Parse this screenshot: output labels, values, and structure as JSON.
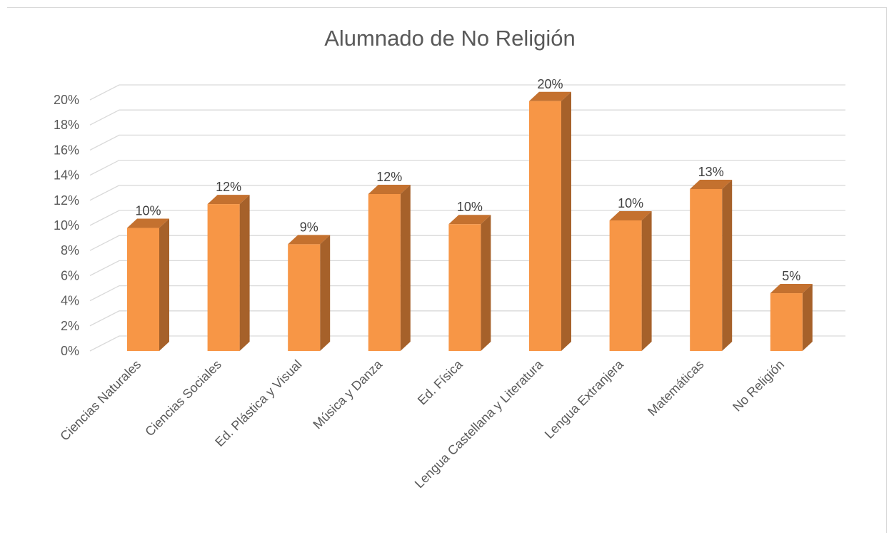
{
  "chart_data": {
    "type": "bar",
    "title": "Alumnado de No Religión",
    "xlabel": "",
    "ylabel": "",
    "ylim": [
      0,
      0.2
    ],
    "y_ticks": [
      0,
      0.02,
      0.04,
      0.06,
      0.08,
      0.1,
      0.12,
      0.14,
      0.16,
      0.18,
      0.2
    ],
    "y_tick_labels": [
      "0%",
      "2%",
      "4%",
      "6%",
      "8%",
      "10%",
      "12%",
      "14%",
      "16%",
      "18%",
      "20%"
    ],
    "categories": [
      "Ciencias Naturales",
      "Ciencias Sociales",
      "Ed. Plástica y Visual",
      "Música y Danza",
      "Ed. Física",
      "Lengua Castellana y Literatura",
      "Lengua Extranjera",
      "Matemáticas",
      "No Religión"
    ],
    "values": [
      0.098,
      0.117,
      0.085,
      0.125,
      0.101,
      0.199,
      0.104,
      0.129,
      0.046
    ],
    "data_labels": [
      "10%",
      "12%",
      "9%",
      "12%",
      "10%",
      "20%",
      "10%",
      "13%",
      "5%"
    ],
    "style": "3d-column",
    "grid": true,
    "legend": "none",
    "colors": {
      "front": "#f79646",
      "side": "#a6612a",
      "top": "#c4712f",
      "grid": "#d9d9d9"
    }
  }
}
